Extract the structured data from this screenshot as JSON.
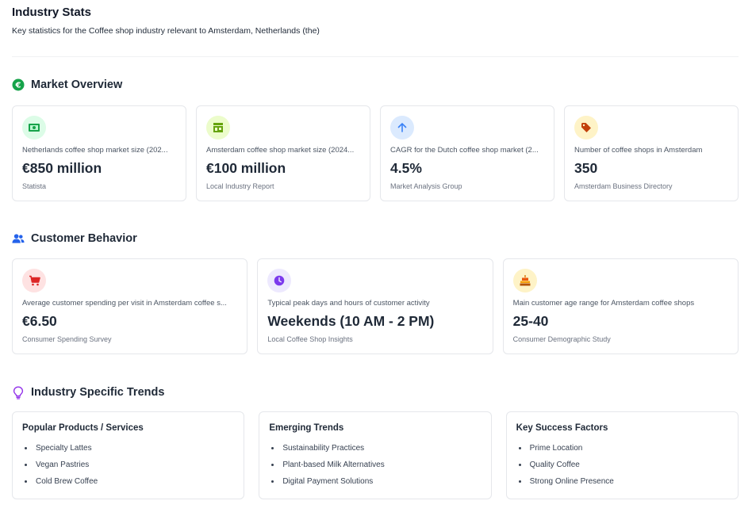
{
  "header": {
    "title": "Industry Stats",
    "subtitle": "Key statistics for the Coffee shop industry relevant to Amsterdam, Netherlands (the)"
  },
  "market_overview": {
    "title": "Market Overview",
    "icon": "euro-icon",
    "cards": [
      {
        "icon": "money-icon",
        "icon_color": "#16a34a",
        "badge_color": "#dcfce7",
        "label": "Netherlands coffee shop market size (202...",
        "value": "€850 million",
        "source": "Statista"
      },
      {
        "icon": "storefront-icon",
        "icon_color": "#65a30d",
        "badge_color": "#ecfccb",
        "label": "Amsterdam coffee shop market size (2024...",
        "value": "€100 million",
        "source": "Local Industry Report"
      },
      {
        "icon": "arrow-up-icon",
        "icon_color": "#3b82f6",
        "badge_color": "#dbeafe",
        "label": "CAGR for the Dutch coffee shop market (2...",
        "value": "4.5%",
        "source": "Market Analysis Group"
      },
      {
        "icon": "tag-icon",
        "icon_color": "#c2410c",
        "badge_color": "#fef3c7",
        "label": "Number of coffee shops in Amsterdam",
        "value": "350",
        "source": "Amsterdam Business Directory"
      }
    ]
  },
  "customer_behavior": {
    "title": "Customer Behavior",
    "icon": "users-icon",
    "cards": [
      {
        "icon": "cart-icon",
        "icon_color": "#dc2626",
        "badge_color": "#fee2e2",
        "label": "Average customer spending per visit in Amsterdam coffee s...",
        "value": "€6.50",
        "source": "Consumer Spending Survey"
      },
      {
        "icon": "clock-icon",
        "icon_color": "#7c3aed",
        "badge_color": "#ede9fe",
        "label": "Typical peak days and hours of customer activity",
        "value": "Weekends (10 AM - 2 PM)",
        "source": "Local Coffee Shop Insights"
      },
      {
        "icon": "cake-icon",
        "icon_color": "#d97706",
        "badge_color": "#fef3c7",
        "label": "Main customer age range for Amsterdam coffee shops",
        "value": "25-40",
        "source": "Consumer Demographic Study"
      }
    ]
  },
  "trends": {
    "title": "Industry Specific Trends",
    "icon": "lightbulb-icon",
    "lists": [
      {
        "title": "Popular Products / Services",
        "items": [
          "Specialty Lattes",
          "Vegan Pastries",
          "Cold Brew Coffee"
        ]
      },
      {
        "title": "Emerging Trends",
        "items": [
          "Sustainability Practices",
          "Plant-based Milk Alternatives",
          "Digital Payment Solutions"
        ]
      },
      {
        "title": "Key Success Factors",
        "items": [
          "Prime Location",
          "Quality Coffee",
          "Strong Online Presence"
        ]
      }
    ]
  }
}
